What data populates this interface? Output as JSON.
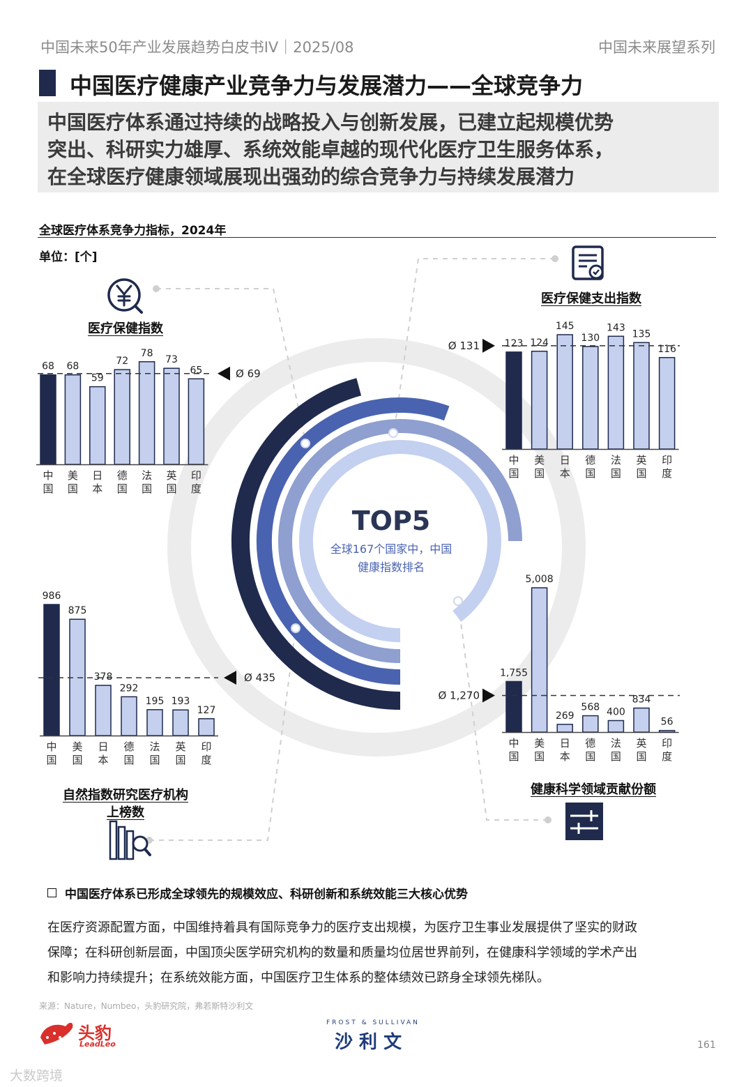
{
  "header": {
    "left": "中国未来50年产业发展趋势白皮书IV｜2025/08",
    "right": "中国未来展望系列"
  },
  "title": "中国医疗健康产业竞争力与发展潜力——全球竞争力",
  "summary": {
    "lines": [
      "中国医疗体系通过持续的战略投入与创新发展，已建立起规模优势",
      "突出、科研实力雄厚、系统效能卓越的现代化医疗卫生服务体系，",
      "在全球医疗健康领域展现出强劲的综合竞争力与持续发展潜力"
    ]
  },
  "figure": {
    "title": "全球医疗体系竞争力指标，2024年",
    "unit": "单位：[个]",
    "center": {
      "headline": "TOP5",
      "line1": "全球167个国家中，中国",
      "line2": "健康指数排名"
    }
  },
  "chart_data": [
    {
      "type": "bar",
      "title": "医疗保健指数",
      "categories": [
        "中国",
        "美国",
        "日本",
        "德国",
        "法国",
        "英国",
        "印度"
      ],
      "values": [
        68,
        68,
        59,
        72,
        78,
        73,
        65
      ],
      "value_labels": [
        "68",
        "68",
        "59",
        "72",
        "78",
        "73",
        "65"
      ],
      "average": 69,
      "average_label": "Ø 69",
      "highlight": "中国",
      "ylim": [
        0,
        80
      ]
    },
    {
      "type": "bar",
      "title": "医疗保健支出指数",
      "categories": [
        "中国",
        "美国",
        "日本",
        "德国",
        "法国",
        "英国",
        "印度"
      ],
      "values": [
        123,
        124,
        145,
        130,
        143,
        135,
        116
      ],
      "value_labels": [
        "123",
        "124",
        "145",
        "130",
        "143",
        "135",
        "116"
      ],
      "average": 131,
      "average_label": "Ø 131",
      "highlight": "中国",
      "ylim": [
        0,
        145
      ]
    },
    {
      "type": "bar",
      "title": "自然指数研究医疗机构上榜数",
      "title_lines": [
        "自然指数研究医疗机构",
        "上榜数"
      ],
      "categories": [
        "中国",
        "美国",
        "日本",
        "德国",
        "法国",
        "英国",
        "印度"
      ],
      "values": [
        986,
        875,
        378,
        292,
        195,
        193,
        127
      ],
      "value_labels": [
        "986",
        "875",
        "378",
        "292",
        "195",
        "193",
        "127"
      ],
      "average": 435,
      "average_label": "Ø 435",
      "highlight": "中国",
      "ylim": [
        0,
        986
      ]
    },
    {
      "type": "bar",
      "title": "健康科学领域贡献份额",
      "categories": [
        "中国",
        "美国",
        "日本",
        "德国",
        "法国",
        "英国",
        "印度"
      ],
      "values": [
        1755,
        5008,
        269,
        568,
        400,
        834,
        56
      ],
      "value_labels": [
        "1,755",
        "5,008",
        "269",
        "568",
        "400",
        "834",
        "56"
      ],
      "average": 1270,
      "average_label": "Ø 1,270",
      "highlight": "中国",
      "ylim": [
        0,
        5008
      ]
    }
  ],
  "colors": {
    "dark": "#1f2a4d",
    "light_bar": "#c5d0ef",
    "ring1": "#1f2a4d",
    "ring2": "#4a63b0",
    "ring3": "#8e9fd0",
    "ring4": "#c3d0f0",
    "grey_ring": "#ececec"
  },
  "icons": [
    "yuan-icon",
    "document-icon",
    "books-search-icon",
    "sliders-icon"
  ],
  "bullet": {
    "heading": "中国医疗体系已形成全球领先的规模效应、科研创新和系统效能三大核心优势",
    "lines": [
      "在医疗资源配置方面，中国维持着具有国际竞争力的医疗支出规模，为医疗卫生事业发展提供了坚实的财政",
      "保障；在科研创新层面，中国顶尖医学研究机构的数量和质量均位居世界前列，在健康科学领域的学术产出",
      "和影响力持续提升；在系统效能方面，中国医疗卫生体系的整体绩效已跻身全球领先梯队。"
    ]
  },
  "footer": {
    "source": "来源：Nature，Numbeo，头豹研究院，弗若斯特沙利文",
    "logo_left_cn": "头豹",
    "logo_left_en": "LeadLeo",
    "logo_right_small": "FROST & SULLIVAN",
    "logo_right_cn": "沙 利 文",
    "page": "161",
    "watermark": "大数跨境"
  }
}
